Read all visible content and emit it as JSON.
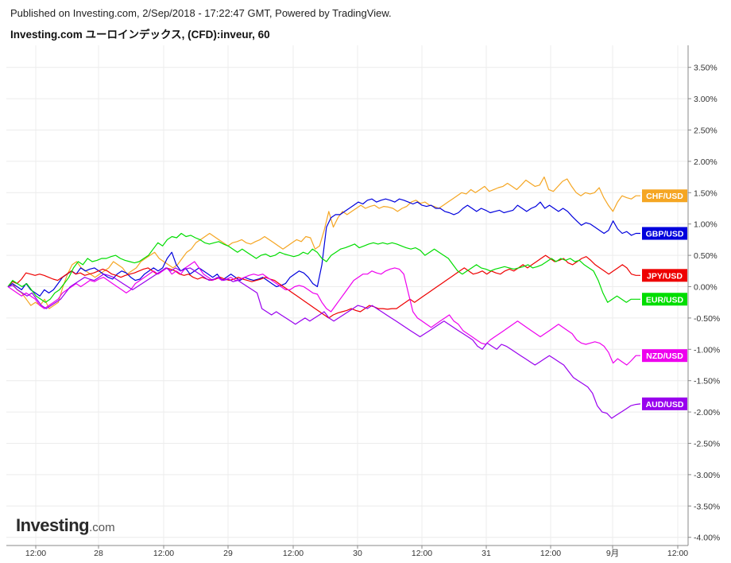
{
  "header": {
    "published": "Published on Investing.com, 2/Sep/2018 - 17:22:47 GMT, Powered by TradingView.",
    "title": "Investing.com ユーロインデックス, (CFD):inveur, 60"
  },
  "logo": {
    "main": "Investing",
    "suffix": ".com"
  },
  "chart_data": {
    "type": "line",
    "y_unit": "%",
    "ylim": [
      -4.0,
      3.75
    ],
    "y_ticks": [
      "3.50%",
      "3.00%",
      "2.50%",
      "2.00%",
      "1.50%",
      "1.00%",
      "0.50%",
      "0.00%",
      "-0.50%",
      "-1.00%",
      "-1.50%",
      "-2.00%",
      "-2.50%",
      "-3.00%",
      "-3.50%",
      "-4.00%"
    ],
    "x_ticks": [
      "12:00",
      "28",
      "12:00",
      "29",
      "12:00",
      "30",
      "12:00",
      "31",
      "12:00",
      "9月",
      "12:00"
    ],
    "grid": true,
    "series": [
      {
        "name": "CHF/USD",
        "color": "#f5a623",
        "values": [
          0,
          0.05,
          -0.05,
          -0.1,
          -0.2,
          -0.3,
          -0.25,
          -0.3,
          -0.2,
          -0.35,
          -0.3,
          -0.25,
          0,
          0.2,
          0.35,
          0.4,
          0.3,
          0.25,
          0.2,
          0.15,
          0.2,
          0.25,
          0.3,
          0.4,
          0.35,
          0.3,
          0.2,
          0.25,
          0.3,
          0.4,
          0.45,
          0.5,
          0.55,
          0.45,
          0.4,
          0.35,
          0.3,
          0.35,
          0.45,
          0.55,
          0.6,
          0.7,
          0.75,
          0.8,
          0.85,
          0.8,
          0.75,
          0.7,
          0.65,
          0.7,
          0.72,
          0.75,
          0.7,
          0.68,
          0.72,
          0.75,
          0.8,
          0.75,
          0.7,
          0.65,
          0.6,
          0.65,
          0.7,
          0.75,
          0.72,
          0.8,
          0.78,
          0.6,
          0.65,
          0.9,
          1.2,
          0.95,
          1.1,
          1.2,
          1.15,
          1.2,
          1.25,
          1.3,
          1.25,
          1.28,
          1.3,
          1.25,
          1.28,
          1.27,
          1.25,
          1.2,
          1.25,
          1.28,
          1.35,
          1.38,
          1.33,
          1.35,
          1.3,
          1.28,
          1.25,
          1.3,
          1.35,
          1.4,
          1.45,
          1.5,
          1.48,
          1.55,
          1.5,
          1.55,
          1.6,
          1.52,
          1.55,
          1.58,
          1.6,
          1.65,
          1.6,
          1.55,
          1.62,
          1.7,
          1.65,
          1.6,
          1.62,
          1.75,
          1.55,
          1.52,
          1.6,
          1.68,
          1.72,
          1.6,
          1.5,
          1.45,
          1.5,
          1.48,
          1.5,
          1.58,
          1.42,
          1.3,
          1.2,
          1.35,
          1.45,
          1.42,
          1.4,
          1.45,
          1.45
        ]
      },
      {
        "name": "GBP/USD",
        "color": "#0000dd",
        "values": [
          0,
          0.05,
          0,
          -0.05,
          0.05,
          -0.05,
          -0.1,
          -0.15,
          -0.05,
          -0.1,
          -0.05,
          0.05,
          0.15,
          0.2,
          0.25,
          0.2,
          0.3,
          0.25,
          0.28,
          0.3,
          0.25,
          0.2,
          0.15,
          0.12,
          0.2,
          0.25,
          0.22,
          0.15,
          0.1,
          0.12,
          0.2,
          0.25,
          0.3,
          0.25,
          0.3,
          0.45,
          0.55,
          0.35,
          0.25,
          0.3,
          0.2,
          0.25,
          0.3,
          0.25,
          0.2,
          0.15,
          0.2,
          0.1,
          0.15,
          0.2,
          0.15,
          0.1,
          0.15,
          0.12,
          0.1,
          0.12,
          0.15,
          0.1,
          0.05,
          0.0,
          0.02,
          0.05,
          0.15,
          0.2,
          0.25,
          0.22,
          0.15,
          0.05,
          0.0,
          0.35,
          0.95,
          1.1,
          1.15,
          1.15,
          1.2,
          1.25,
          1.3,
          1.35,
          1.32,
          1.38,
          1.4,
          1.35,
          1.38,
          1.4,
          1.38,
          1.35,
          1.4,
          1.38,
          1.35,
          1.32,
          1.35,
          1.3,
          1.28,
          1.3,
          1.25,
          1.25,
          1.2,
          1.18,
          1.15,
          1.18,
          1.25,
          1.3,
          1.25,
          1.2,
          1.25,
          1.22,
          1.18,
          1.2,
          1.22,
          1.18,
          1.2,
          1.22,
          1.3,
          1.25,
          1.2,
          1.25,
          1.28,
          1.35,
          1.25,
          1.3,
          1.25,
          1.2,
          1.25,
          1.2,
          1.12,
          1.05,
          0.98,
          1.02,
          1.0,
          0.95,
          0.9,
          0.85,
          0.9,
          1.05,
          0.92,
          0.85,
          0.88,
          0.82,
          0.85,
          0.85
        ]
      },
      {
        "name": "JPY/USD",
        "color": "#ee0000",
        "values": [
          0,
          0.08,
          0.05,
          0.12,
          0.22,
          0.2,
          0.18,
          0.2,
          0.18,
          0.15,
          0.12,
          0.1,
          0.15,
          0.2,
          0.25,
          0.2,
          0.22,
          0.18,
          0.2,
          0.22,
          0.25,
          0.28,
          0.25,
          0.2,
          0.18,
          0.15,
          0.18,
          0.2,
          0.22,
          0.25,
          0.28,
          0.3,
          0.25,
          0.2,
          0.25,
          0.3,
          0.28,
          0.25,
          0.2,
          0.18,
          0.2,
          0.15,
          0.12,
          0.15,
          0.12,
          0.1,
          0.12,
          0.15,
          0.12,
          0.1,
          0.12,
          0.15,
          0.12,
          0.1,
          0.08,
          0.1,
          0.12,
          0.15,
          0.12,
          0.1,
          0.05,
          0.0,
          -0.05,
          -0.1,
          -0.15,
          -0.2,
          -0.25,
          -0.3,
          -0.35,
          -0.4,
          -0.45,
          -0.5,
          -0.45,
          -0.42,
          -0.4,
          -0.38,
          -0.35,
          -0.38,
          -0.4,
          -0.35,
          -0.3,
          -0.32,
          -0.35,
          -0.35,
          -0.36,
          -0.35,
          -0.35,
          -0.3,
          -0.25,
          -0.2,
          -0.25,
          -0.2,
          -0.15,
          -0.1,
          -0.05,
          0.0,
          0.05,
          0.1,
          0.15,
          0.2,
          0.25,
          0.3,
          0.25,
          0.2,
          0.22,
          0.25,
          0.2,
          0.25,
          0.22,
          0.2,
          0.25,
          0.28,
          0.25,
          0.3,
          0.35,
          0.3,
          0.35,
          0.4,
          0.45,
          0.5,
          0.45,
          0.4,
          0.42,
          0.45,
          0.38,
          0.35,
          0.4,
          0.45,
          0.48,
          0.42,
          0.35,
          0.3,
          0.25,
          0.2,
          0.25,
          0.3,
          0.35,
          0.3,
          0.2,
          0.18,
          0.18
        ]
      },
      {
        "name": "EUR/USD",
        "color": "#00dd00",
        "values": [
          0,
          0.1,
          0.05,
          0.0,
          0.05,
          -0.05,
          -0.15,
          -0.2,
          -0.25,
          -0.2,
          -0.1,
          -0.05,
          0.05,
          0.15,
          0.3,
          0.4,
          0.35,
          0.45,
          0.4,
          0.42,
          0.45,
          0.45,
          0.48,
          0.5,
          0.45,
          0.42,
          0.4,
          0.38,
          0.4,
          0.45,
          0.5,
          0.6,
          0.7,
          0.65,
          0.75,
          0.8,
          0.78,
          0.85,
          0.8,
          0.82,
          0.78,
          0.75,
          0.7,
          0.68,
          0.7,
          0.72,
          0.68,
          0.65,
          0.6,
          0.55,
          0.6,
          0.55,
          0.5,
          0.45,
          0.5,
          0.52,
          0.48,
          0.5,
          0.55,
          0.52,
          0.5,
          0.48,
          0.5,
          0.55,
          0.52,
          0.6,
          0.55,
          0.45,
          0.4,
          0.5,
          0.55,
          0.6,
          0.62,
          0.65,
          0.68,
          0.62,
          0.65,
          0.68,
          0.7,
          0.68,
          0.7,
          0.68,
          0.7,
          0.68,
          0.65,
          0.62,
          0.6,
          0.62,
          0.58,
          0.5,
          0.55,
          0.6,
          0.55,
          0.5,
          0.45,
          0.35,
          0.25,
          0.2,
          0.25,
          0.3,
          0.35,
          0.3,
          0.28,
          0.25,
          0.28,
          0.3,
          0.32,
          0.3,
          0.28,
          0.3,
          0.32,
          0.35,
          0.3,
          0.32,
          0.35,
          0.4,
          0.45,
          0.4,
          0.45,
          0.42,
          0.45,
          0.4,
          0.42,
          0.35,
          0.3,
          0.25,
          0.1,
          -0.1,
          -0.25,
          -0.2,
          -0.15,
          -0.2,
          -0.25,
          -0.2,
          -0.2,
          -0.2
        ]
      },
      {
        "name": "NZD/USD",
        "color": "#ee00ee",
        "values": [
          0,
          -0.05,
          -0.1,
          -0.15,
          -0.1,
          -0.15,
          -0.2,
          -0.3,
          -0.35,
          -0.3,
          -0.25,
          -0.2,
          -0.1,
          -0.05,
          0.0,
          0.05,
          0.0,
          0.05,
          0.1,
          0.08,
          0.12,
          0.15,
          0.1,
          0.05,
          0.0,
          -0.05,
          -0.1,
          -0.05,
          0.05,
          0.1,
          0.15,
          0.2,
          0.25,
          0.2,
          0.25,
          0.3,
          0.2,
          0.25,
          0.2,
          0.3,
          0.35,
          0.4,
          0.3,
          0.2,
          0.15,
          0.1,
          0.15,
          0.1,
          0.12,
          0.15,
          0.1,
          0.12,
          0.15,
          0.18,
          0.2,
          0.18,
          0.2,
          0.15,
          0.1,
          0.05,
          0.0,
          -0.05,
          -0.05,
          0.0,
          0.02,
          0.0,
          -0.05,
          -0.1,
          -0.12,
          -0.25,
          -0.35,
          -0.4,
          -0.3,
          -0.2,
          -0.1,
          0.0,
          0.1,
          0.15,
          0.2,
          0.2,
          0.25,
          0.22,
          0.2,
          0.25,
          0.28,
          0.3,
          0.28,
          0.2,
          -0.1,
          -0.4,
          -0.5,
          -0.55,
          -0.6,
          -0.65,
          -0.6,
          -0.55,
          -0.5,
          -0.45,
          -0.55,
          -0.6,
          -0.7,
          -0.75,
          -0.8,
          -0.85,
          -0.9,
          -0.92,
          -0.85,
          -0.8,
          -0.75,
          -0.7,
          -0.65,
          -0.6,
          -0.55,
          -0.6,
          -0.65,
          -0.7,
          -0.75,
          -0.8,
          -0.75,
          -0.7,
          -0.65,
          -0.6,
          -0.65,
          -0.7,
          -0.75,
          -0.85,
          -0.9,
          -0.92,
          -0.9,
          -0.88,
          -0.9,
          -0.95,
          -1.05,
          -1.22,
          -1.15,
          -1.2,
          -1.25,
          -1.18,
          -1.1,
          -1.1
        ]
      },
      {
        "name": "AUD/USD",
        "color": "#9900ee",
        "values": [
          0,
          0.02,
          -0.05,
          -0.1,
          -0.15,
          -0.1,
          -0.2,
          -0.3,
          -0.35,
          -0.3,
          -0.25,
          -0.2,
          -0.1,
          0.0,
          0.05,
          0.1,
          0.15,
          0.12,
          0.1,
          0.15,
          0.2,
          0.18,
          0.15,
          0.1,
          0.05,
          0.0,
          -0.05,
          0.0,
          0.05,
          0.1,
          0.15,
          0.2,
          0.25,
          0.3,
          0.25,
          0.3,
          0.25,
          0.28,
          0.3,
          0.25,
          0.2,
          0.15,
          0.1,
          0.12,
          0.15,
          0.1,
          0.12,
          0.08,
          0.1,
          0.05,
          0.0,
          -0.05,
          -0.1,
          -0.35,
          -0.4,
          -0.45,
          -0.4,
          -0.45,
          -0.5,
          -0.55,
          -0.6,
          -0.55,
          -0.5,
          -0.55,
          -0.5,
          -0.45,
          -0.4,
          -0.5,
          -0.55,
          -0.5,
          -0.45,
          -0.4,
          -0.35,
          -0.3,
          -0.32,
          -0.35,
          -0.3,
          -0.35,
          -0.4,
          -0.45,
          -0.5,
          -0.55,
          -0.6,
          -0.65,
          -0.7,
          -0.75,
          -0.8,
          -0.75,
          -0.7,
          -0.65,
          -0.6,
          -0.55,
          -0.6,
          -0.65,
          -0.7,
          -0.75,
          -0.8,
          -0.85,
          -0.95,
          -1.0,
          -0.9,
          -0.95,
          -1.0,
          -0.92,
          -0.95,
          -1.0,
          -1.05,
          -1.1,
          -1.15,
          -1.2,
          -1.25,
          -1.2,
          -1.15,
          -1.1,
          -1.15,
          -1.2,
          -1.25,
          -1.35,
          -1.45,
          -1.5,
          -1.55,
          -1.6,
          -1.7,
          -1.9,
          -2.0,
          -2.02,
          -2.1,
          -2.05,
          -2.0,
          -1.95,
          -1.9,
          -1.88,
          -1.87
        ]
      }
    ]
  }
}
